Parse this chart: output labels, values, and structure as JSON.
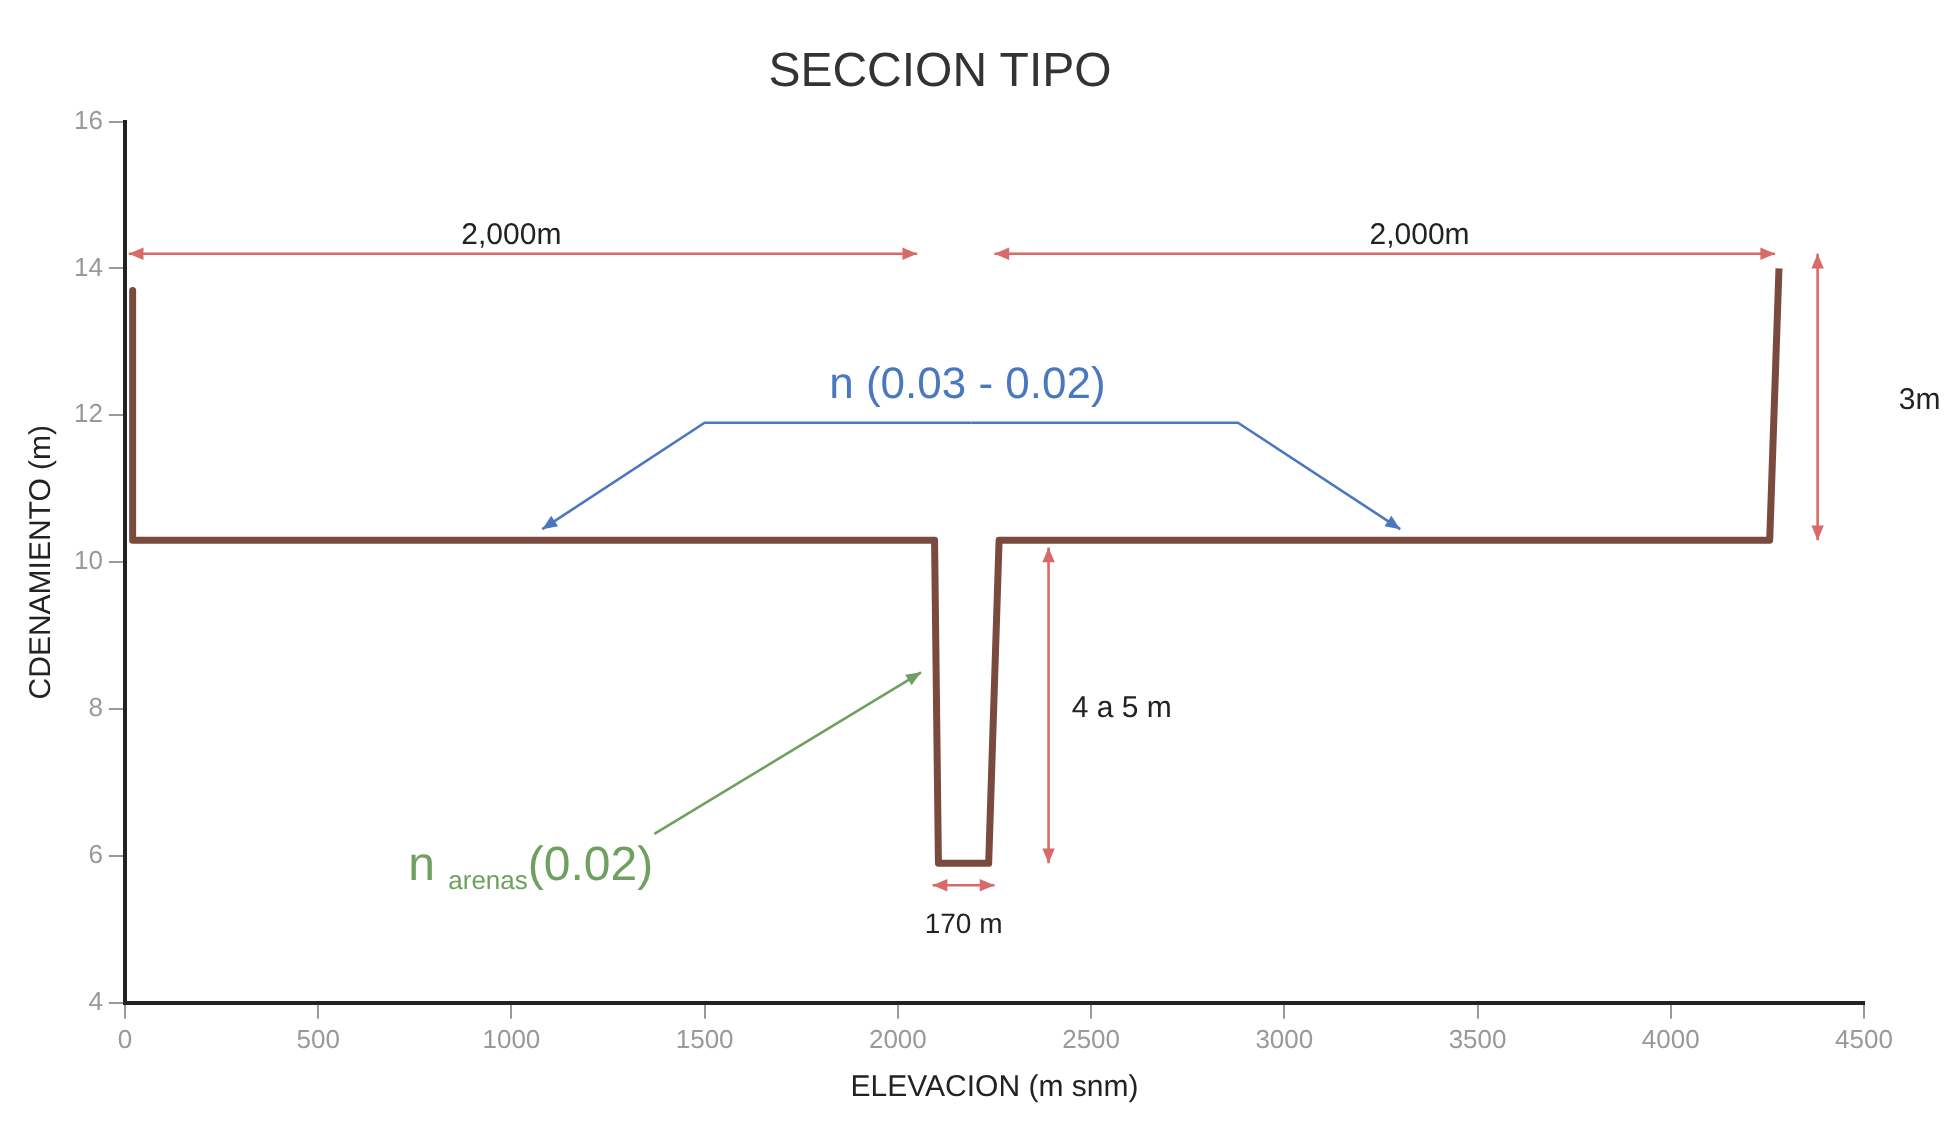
{
  "chart_data": {
    "type": "line",
    "title": "SECCION TIPO",
    "xlabel": "ELEVACION (m snm)",
    "ylabel": "CDENAMIENTO (m)",
    "x": [
      20,
      20,
      2095,
      2105,
      2235,
      2262,
      4256,
      4280
    ],
    "series": [
      {
        "color": "#7a4a3e",
        "values": [
          13.7,
          10.3,
          10.3,
          5.9,
          5.9,
          10.3,
          10.3,
          14.0
        ]
      }
    ],
    "xlim": [
      0,
      4500
    ],
    "xticks": [
      0,
      500,
      1000,
      1500,
      2000,
      2500,
      3000,
      3500,
      4000,
      4500
    ],
    "ylim": [
      4,
      16
    ],
    "yticks": [
      4,
      6,
      8,
      10,
      12,
      14,
      16
    ],
    "grid": false,
    "legend": false,
    "marker": "none",
    "line_style": "solid",
    "annotations": [
      "2,000m",
      "2,000m",
      "3m",
      {
        "text": "n (0.03 - 0.02)",
        "x": 1080,
        "y": 10.45
      },
      "4 a 5 m",
      "170 m",
      "n $_{arenas}$(0.02)"
    ]
  }
}
